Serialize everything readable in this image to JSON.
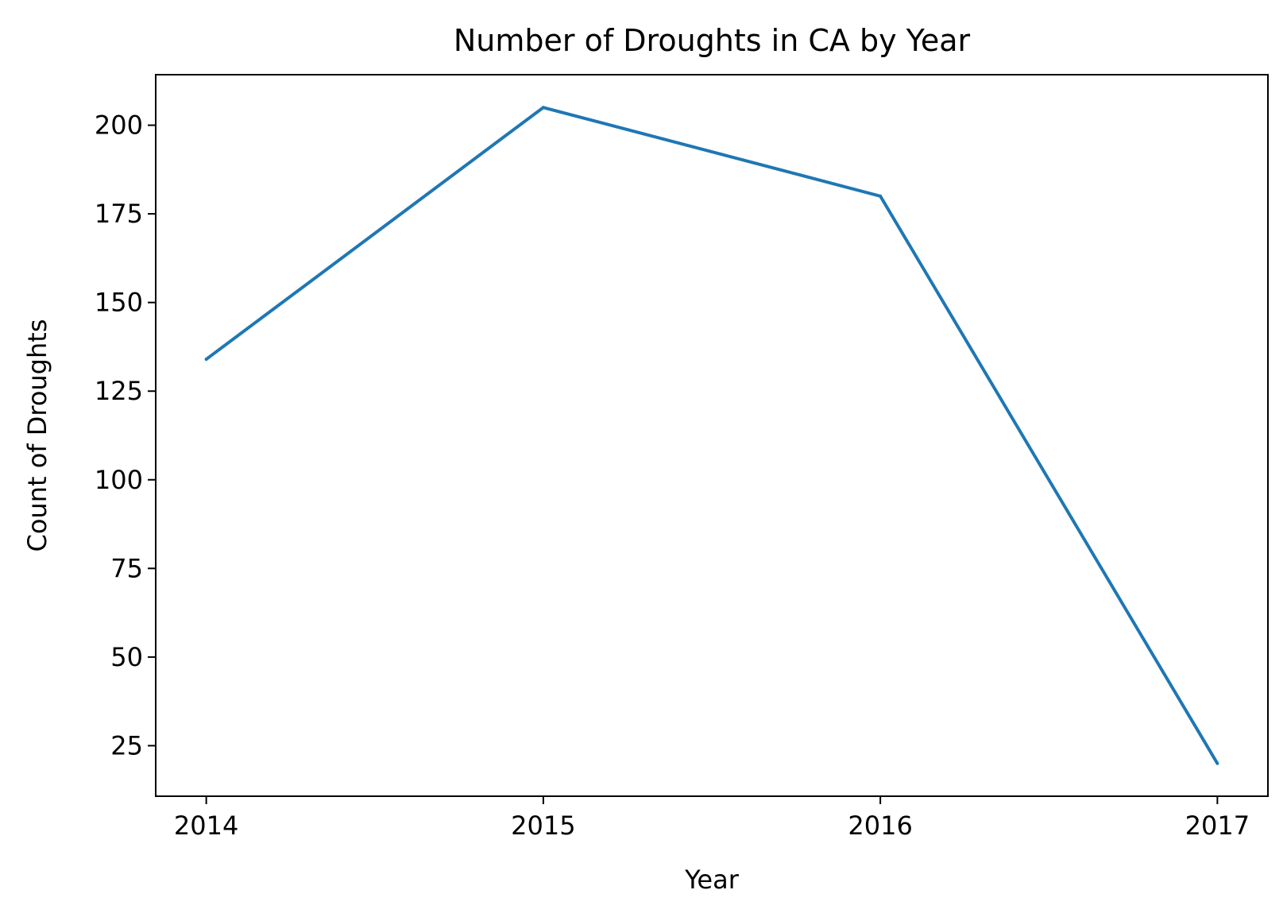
{
  "chart_data": {
    "type": "line",
    "title": "Number of Droughts in CA by Year",
    "xlabel": "Year",
    "ylabel": "Count of Droughts",
    "x": [
      "2014",
      "2015",
      "2016",
      "2017"
    ],
    "series": [
      {
        "values": [
          134,
          205,
          180,
          20
        ],
        "color": "#1f77b4"
      }
    ],
    "xlim": [
      2013.85,
      2017.15
    ],
    "ylim": [
      10.75,
      214.25
    ],
    "yticks": [
      25,
      50,
      75,
      100,
      125,
      150,
      175,
      200
    ],
    "grid": false,
    "legend": "none"
  }
}
